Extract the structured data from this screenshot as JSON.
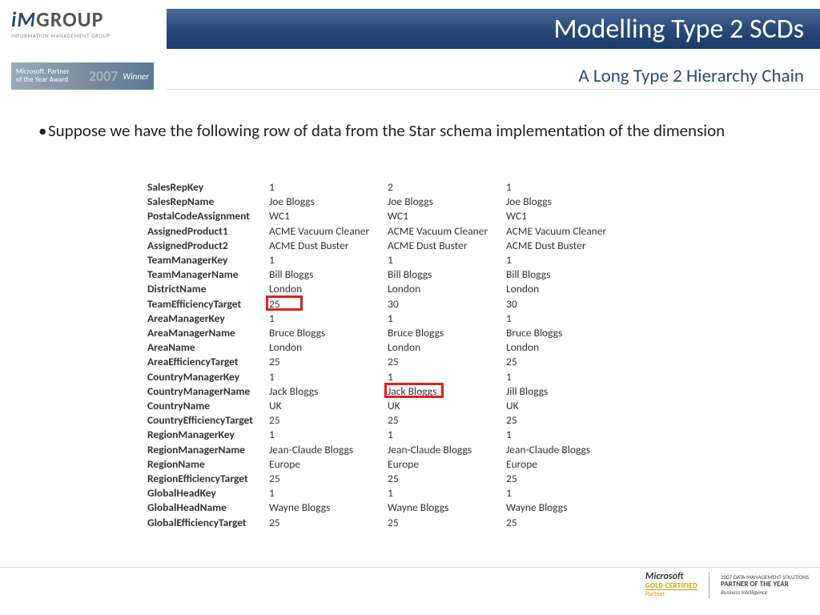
{
  "header": {
    "title": "Modelling Type 2 SCDs",
    "subtitle": "A Long Type 2 Hierarchy Chain"
  },
  "logo": {
    "prefix": "iM",
    "suffix": "GROUP",
    "tagline": "INFORMATION MANAGEMENT GROUP"
  },
  "award_badge": {
    "line1": "Microsoft. Partner",
    "line2": "of the Year Award",
    "year": "2007",
    "status": "Winner"
  },
  "body": {
    "bullet": "Suppose we have the following row of data from the Star schema implementation of the dimension"
  },
  "table": {
    "labels": [
      "SalesRepKey",
      "SalesRepName",
      "PostalCodeAssignment",
      "AssignedProduct1",
      "AssignedProduct2",
      "TeamManagerKey",
      "TeamManagerName",
      "DistrictName",
      "TeamEfficiencyTarget",
      "AreaManagerKey",
      "AreaManagerName",
      "AreaName",
      "AreaEfficiencyTarget",
      "CountryManagerKey",
      "CountryManagerName",
      "CountryName",
      "CountryEfficiencyTarget",
      "RegionManagerKey",
      "RegionManagerName",
      "RegionName",
      "RegionEfficiencyTarget",
      "GlobalHeadKey",
      "GlobalHeadName",
      "GlobalEfficiencyTarget"
    ],
    "col1": [
      "1",
      "Joe Bloggs",
      "WC1",
      "ACME Vacuum Cleaner",
      "ACME Dust Buster",
      "1",
      "Bill Bloggs",
      "London",
      "25",
      "1",
      "Bruce Bloggs",
      "London",
      "25",
      "1",
      "Jack Bloggs",
      "UK",
      "25",
      "1",
      "Jean-Claude Bloggs",
      "Europe",
      "25",
      "1",
      "Wayne Bloggs",
      "25"
    ],
    "col2": [
      "2",
      "Joe Bloggs",
      "WC1",
      "ACME Vacuum Cleaner",
      "ACME Dust Buster",
      "1",
      "Bill Bloggs",
      "London",
      "30",
      "1",
      "Bruce Bloggs",
      "London",
      "25",
      "1",
      "Jack Bloggs",
      "UK",
      "25",
      "1",
      "Jean-Claude Bloggs",
      "Europe",
      "25",
      "1",
      "Wayne Bloggs",
      "25"
    ],
    "col3": [
      "1",
      "Joe Bloggs",
      "WC1",
      "ACME Vacuum Cleaner",
      "ACME Dust Buster",
      "1",
      "Bill Bloggs",
      "London",
      "30",
      "1",
      "Bruce Bloggs",
      "London",
      "25",
      "1",
      "Jill Bloggs",
      "UK",
      "25",
      "1",
      "Jean-Claude Bloggs",
      "Europe",
      "25",
      "1",
      "Wayne Bloggs",
      "25"
    ],
    "highlights": [
      {
        "col": 1,
        "row": 8,
        "width": 46
      },
      {
        "col": 2,
        "row": 14,
        "width": 74
      }
    ],
    "highlight_color": "#e02020"
  },
  "footer": {
    "badge1": {
      "brand": "Microsoft",
      "level": "GOLD CERTIFIED",
      "role": "Partner"
    },
    "badge2": {
      "top": "2007 DATA MANAGEMENT SOLUTIONS",
      "mid": "PARTNER OF THE YEAR",
      "bot": "Business Intelligence"
    }
  },
  "colors": {
    "header_text": "#ffffff",
    "subtitle_text": "#2a4a7a",
    "body_text": "#222222",
    "table_text": "#333333"
  }
}
